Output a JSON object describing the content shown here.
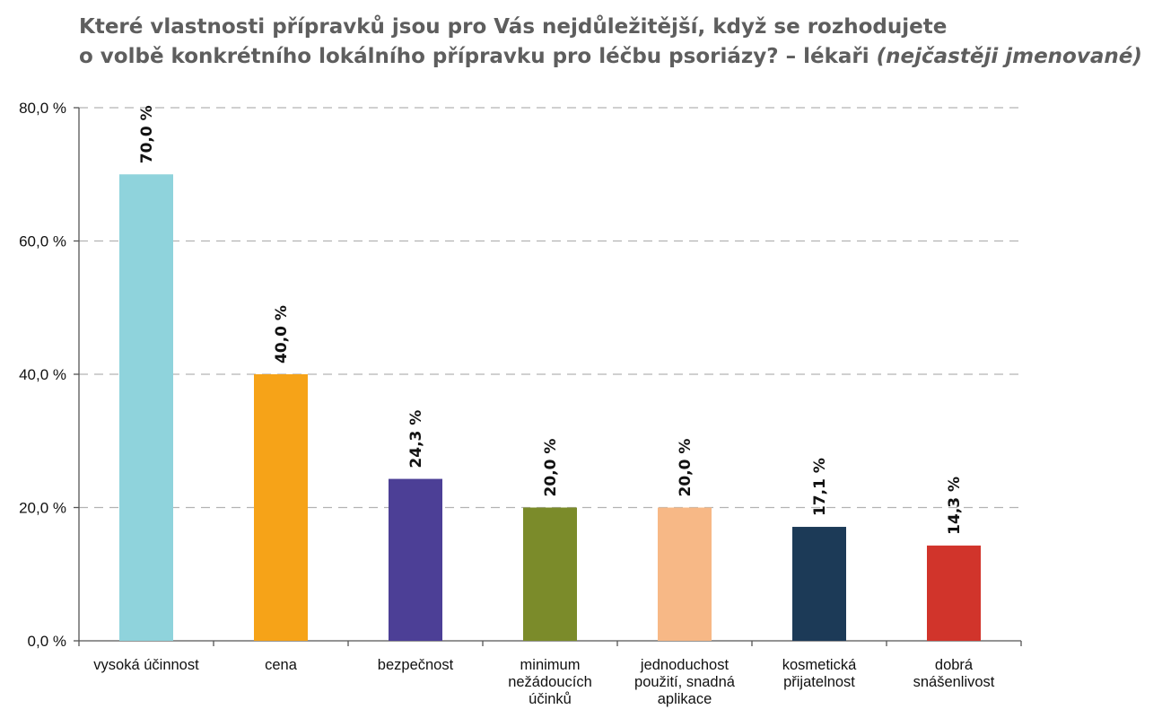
{
  "chart_data": {
    "type": "bar",
    "title_line1": "Které vlastnosti přípravků jsou pro Vás nejdůležitější, když se rozhodujete",
    "title_line2": "o volbě konkrétního lokálního přípravku pro léčbu psoriázy? – lékaři",
    "title_note": "(nejčastěji jmenované)",
    "categories": [
      [
        "vysoká účinnost"
      ],
      [
        "cena"
      ],
      [
        "bezpečnost"
      ],
      [
        "minimum",
        "nežádoucích",
        "účinků"
      ],
      [
        "jednoduchost",
        "použití, snadná",
        "aplikace"
      ],
      [
        "kosmetická",
        "přijatelnost"
      ],
      [
        "dobrá",
        "snášenlivost"
      ]
    ],
    "values": [
      70.0,
      40.0,
      24.3,
      20.0,
      20.0,
      17.1,
      14.3
    ],
    "value_labels": [
      "70,0 %",
      "40,0 %",
      "24,3 %",
      "20,0 %",
      "20,0 %",
      "17,1 %",
      "14,3 %"
    ],
    "colors": [
      "#8fd3dc",
      "#f6a318",
      "#4c3f96",
      "#7b8b2a",
      "#f7b886",
      "#1c3a57",
      "#d1342b"
    ],
    "ylim": [
      0,
      80
    ],
    "yticks": [
      0,
      20,
      40,
      60,
      80
    ],
    "ytick_labels": [
      "0,0 %",
      "20,0 %",
      "40,0 %",
      "60,0 %",
      "80,0 %"
    ],
    "xlabel": "",
    "ylabel": "",
    "grid": true,
    "grid_style": "dashed"
  }
}
